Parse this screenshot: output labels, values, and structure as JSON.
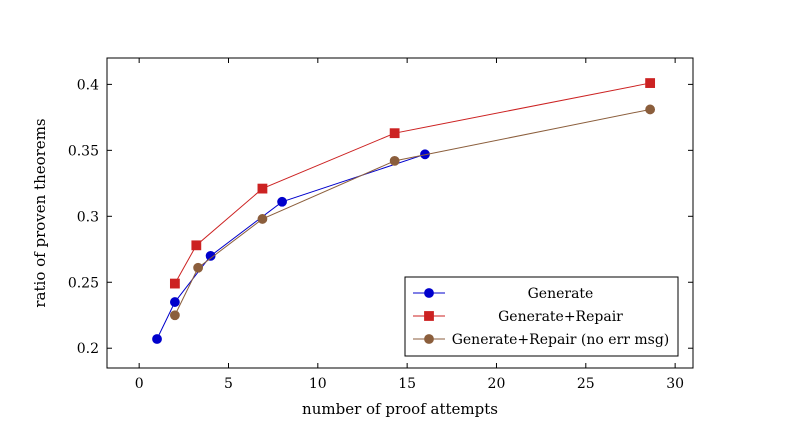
{
  "chart_data": {
    "type": "line",
    "title": "",
    "xlabel": "number of proof attempts",
    "ylabel": "ratio of proven theorems",
    "xlim": [
      -1.8,
      31
    ],
    "ylim": [
      0.185,
      0.42
    ],
    "xticks": [
      0,
      5,
      10,
      15,
      20,
      25,
      30
    ],
    "yticks": [
      0.2,
      0.25,
      0.3,
      0.35,
      0.4
    ],
    "grid": false,
    "legend_position": "bottom-right",
    "series": [
      {
        "name": "Generate",
        "color": "#0000cc",
        "marker": "circle",
        "x": [
          1,
          2,
          4,
          8,
          16
        ],
        "y": [
          0.207,
          0.235,
          0.27,
          0.311,
          0.347
        ]
      },
      {
        "name": "Generate+Repair",
        "color": "#cc2222",
        "marker": "square",
        "x": [
          2,
          3.2,
          6.9,
          14.3,
          28.6
        ],
        "y": [
          0.249,
          0.278,
          0.321,
          0.363,
          0.401
        ]
      },
      {
        "name": "Generate+Repair (no err msg)",
        "color": "#8b5e3c",
        "marker": "circle",
        "x": [
          2,
          3.3,
          6.9,
          14.3,
          28.6
        ],
        "y": [
          0.225,
          0.261,
          0.298,
          0.342,
          0.381
        ]
      }
    ]
  }
}
